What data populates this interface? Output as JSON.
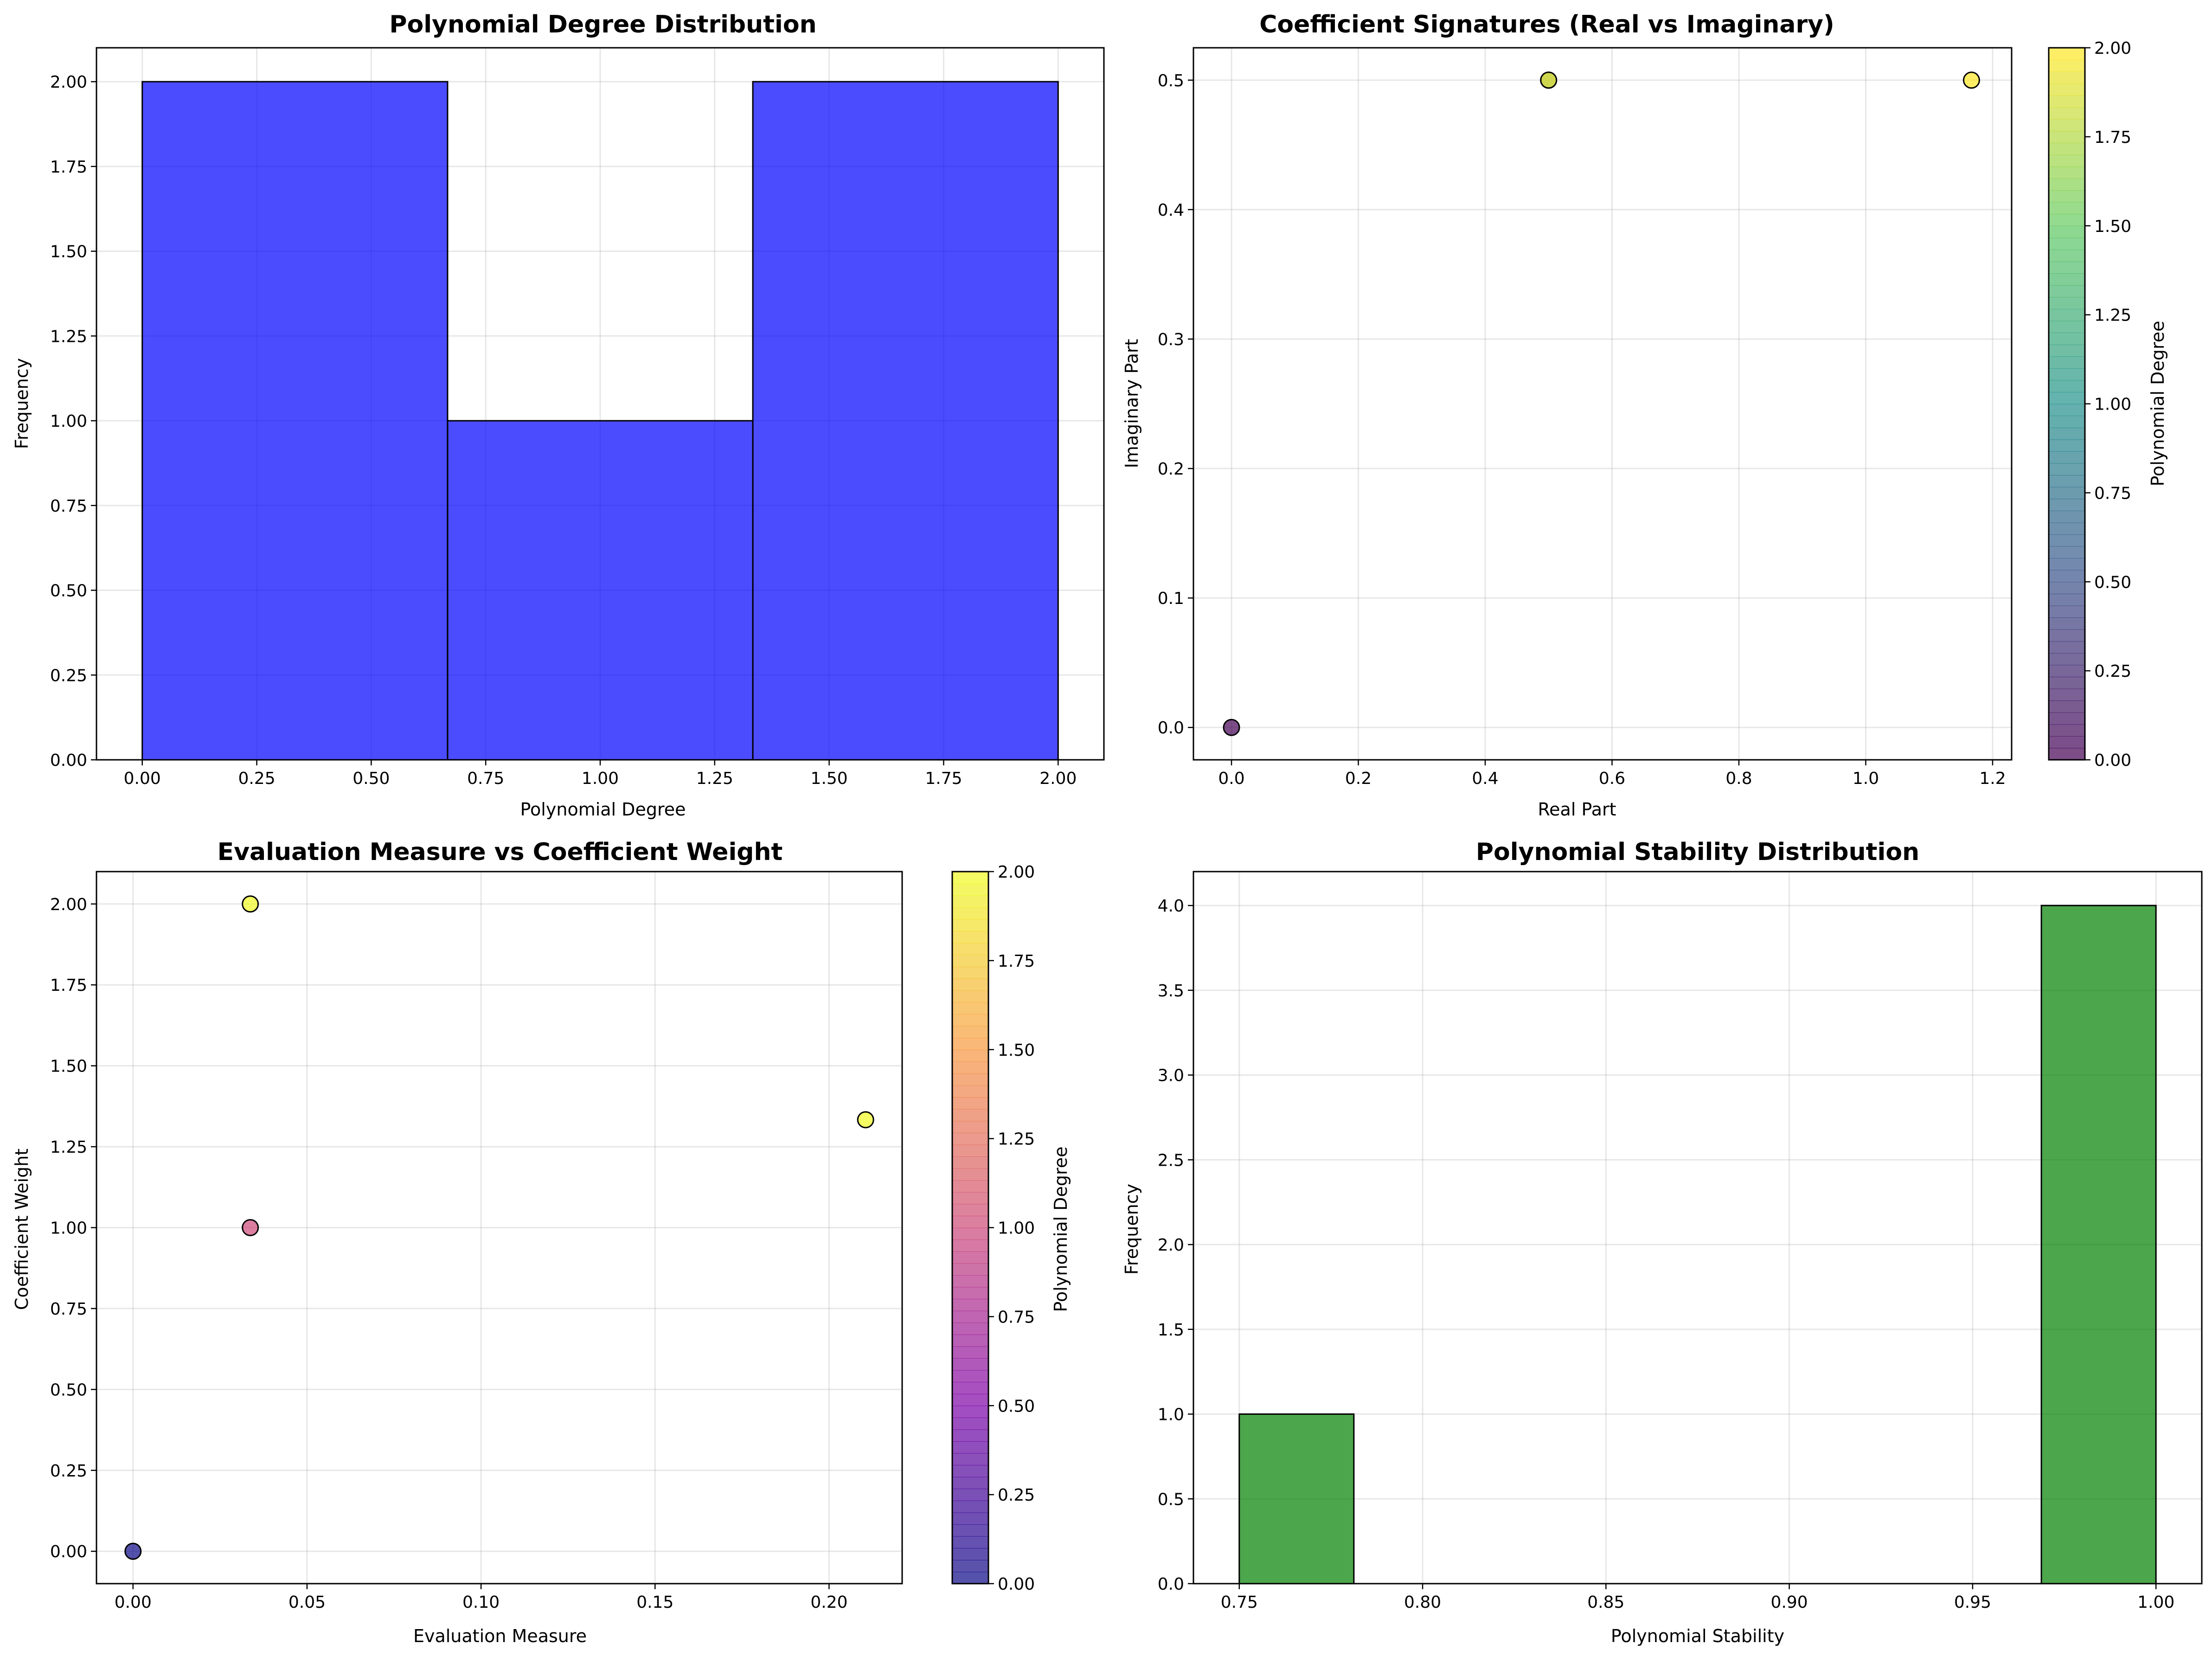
{
  "chart_data": [
    {
      "id": "degree-hist",
      "type": "bar",
      "title": "Polynomial Degree Distribution",
      "xlabel": "Polynomial Degree",
      "ylabel": "Frequency",
      "bins": [
        {
          "x0": 0.0,
          "x1": 0.6667,
          "value": 2
        },
        {
          "x0": 0.6667,
          "x1": 1.3333,
          "value": 1
        },
        {
          "x0": 1.3333,
          "x1": 2.0,
          "value": 2
        }
      ],
      "xlim": [
        -0.1,
        2.1
      ],
      "ylim": [
        0,
        2.1
      ],
      "xticks": [
        "0.00",
        "0.25",
        "0.50",
        "0.75",
        "1.00",
        "1.25",
        "1.50",
        "1.75",
        "2.00"
      ],
      "yticks": [
        "0.00",
        "0.25",
        "0.50",
        "0.75",
        "1.00",
        "1.25",
        "1.50",
        "1.75",
        "2.00"
      ],
      "color": "#0000ff",
      "grid": true
    },
    {
      "id": "coeff-scatter",
      "type": "scatter",
      "title": "Coefficient Signatures (Real vs Imaginary)",
      "xlabel": "Real Part",
      "ylabel": "Imaginary Part",
      "points": [
        {
          "x": 0.0,
          "y": 0.0,
          "c": 0
        },
        {
          "x": 0.5,
          "y": 0.5,
          "c": 1
        },
        {
          "x": 0.5,
          "y": 0.5,
          "c": 2
        },
        {
          "x": 1.1667,
          "y": 0.5,
          "c": 2
        }
      ],
      "xlim": [
        -0.06,
        1.23
      ],
      "ylim": [
        -0.025,
        0.525
      ],
      "xticks": [
        "0.0",
        "0.2",
        "0.4",
        "0.6",
        "0.8",
        "1.0",
        "1.2"
      ],
      "yticks": [
        "0.0",
        "0.1",
        "0.2",
        "0.3",
        "0.4",
        "0.5"
      ],
      "colormap": "viridis",
      "colorbar": {
        "label": "Polynomial Degree",
        "range": [
          0,
          2
        ],
        "ticks": [
          "0.00",
          "0.25",
          "0.50",
          "0.75",
          "1.00",
          "1.25",
          "1.50",
          "1.75",
          "2.00"
        ]
      },
      "grid": true
    },
    {
      "id": "eval-scatter",
      "type": "scatter",
      "title": "Evaluation Measure vs Coefficient Weight",
      "xlabel": "Evaluation Measure",
      "ylabel": "Coefficient Weight",
      "points": [
        {
          "x": 0.0,
          "y": 0.0,
          "c": 0
        },
        {
          "x": 0.0337,
          "y": 1.0,
          "c": 1
        },
        {
          "x": 0.0337,
          "y": 2.0,
          "c": 2
        },
        {
          "x": 0.2105,
          "y": 1.3333,
          "c": 2
        }
      ],
      "xlim": [
        -0.0105,
        0.221
      ],
      "ylim": [
        -0.1,
        2.1
      ],
      "xticks": [
        "0.00",
        "0.05",
        "0.10",
        "0.15",
        "0.20"
      ],
      "yticks": [
        "0.00",
        "0.25",
        "0.50",
        "0.75",
        "1.00",
        "1.25",
        "1.50",
        "1.75",
        "2.00"
      ],
      "colormap": "plasma",
      "colorbar": {
        "label": "Polynomial Degree",
        "range": [
          0,
          2
        ],
        "ticks": [
          "0.00",
          "0.25",
          "0.50",
          "0.75",
          "1.00",
          "1.25",
          "1.50",
          "1.75",
          "2.00"
        ]
      },
      "grid": true
    },
    {
      "id": "stability-hist",
      "type": "bar",
      "title": "Polynomial Stability Distribution",
      "xlabel": "Polynomial Stability",
      "ylabel": "Frequency",
      "bins": [
        {
          "x0": 0.75,
          "x1": 0.78125,
          "value": 1
        },
        {
          "x0": 0.96875,
          "x1": 1.0,
          "value": 4
        }
      ],
      "xlim": [
        0.7375,
        1.0125
      ],
      "ylim": [
        0,
        4.2
      ],
      "xticks": [
        "0.75",
        "0.80",
        "0.85",
        "0.90",
        "0.95",
        "1.00"
      ],
      "yticks": [
        "0.0",
        "0.5",
        "1.0",
        "1.5",
        "2.0",
        "2.5",
        "3.0",
        "3.5",
        "4.0"
      ],
      "color": "#008000",
      "grid": true
    }
  ]
}
